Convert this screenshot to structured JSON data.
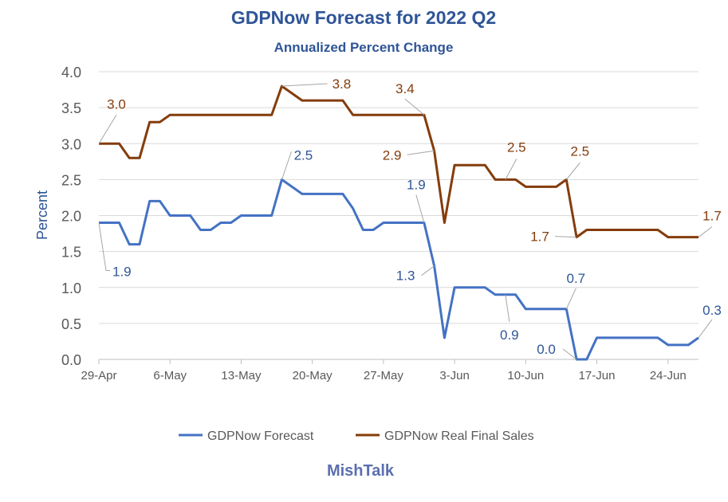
{
  "chart_data": {
    "type": "line",
    "title": "GDPNow Forecast for 2022 Q2",
    "subtitle": "Annualized Percent Change",
    "xlabel": "",
    "ylabel": "Percent",
    "ylim": [
      0,
      4.0
    ],
    "yticks": [
      "0.0",
      "0.5",
      "1.0",
      "1.5",
      "2.0",
      "2.5",
      "3.0",
      "3.5",
      "4.0"
    ],
    "xticks": [
      "29-Apr",
      "6-May",
      "13-May",
      "20-May",
      "27-May",
      "3-Jun",
      "10-Jun",
      "17-Jun",
      "24-Jun"
    ],
    "grid": true,
    "legend_position": "bottom",
    "x": [
      "29-Apr",
      "30-Apr",
      "1-May",
      "2-May",
      "3-May",
      "4-May",
      "5-May",
      "6-May",
      "7-May",
      "8-May",
      "9-May",
      "10-May",
      "11-May",
      "12-May",
      "13-May",
      "14-May",
      "15-May",
      "16-May",
      "17-May",
      "18-May",
      "19-May",
      "20-May",
      "21-May",
      "22-May",
      "23-May",
      "24-May",
      "25-May",
      "26-May",
      "27-May",
      "28-May",
      "29-May",
      "30-May",
      "31-May",
      "1-Jun",
      "2-Jun",
      "3-Jun",
      "4-Jun",
      "5-Jun",
      "6-Jun",
      "7-Jun",
      "8-Jun",
      "9-Jun",
      "10-Jun",
      "11-Jun",
      "12-Jun",
      "13-Jun",
      "14-Jun",
      "15-Jun",
      "16-Jun",
      "17-Jun",
      "18-Jun",
      "19-Jun",
      "20-Jun",
      "21-Jun",
      "22-Jun",
      "23-Jun",
      "24-Jun",
      "25-Jun",
      "26-Jun",
      "27-Jun"
    ],
    "series": [
      {
        "name": "GDPNow Forecast",
        "color": "#4472C4",
        "label_color": "#2F5597",
        "values": [
          1.9,
          1.9,
          1.9,
          1.6,
          1.6,
          2.2,
          2.2,
          2.0,
          2.0,
          2.0,
          1.8,
          1.8,
          1.9,
          1.9,
          2.0,
          2.0,
          2.0,
          2.0,
          2.5,
          2.4,
          2.3,
          2.3,
          2.3,
          2.3,
          2.3,
          2.1,
          1.8,
          1.8,
          1.9,
          1.9,
          1.9,
          1.9,
          1.9,
          1.3,
          0.3,
          1.0,
          1.0,
          1.0,
          1.0,
          0.9,
          0.9,
          0.9,
          0.7,
          0.7,
          0.7,
          0.7,
          0.7,
          0.0,
          0.0,
          0.3,
          0.3,
          0.3,
          0.3,
          0.3,
          0.3,
          0.3,
          0.2,
          0.2,
          0.2,
          0.3
        ],
        "labels": [
          {
            "x": "29-Apr",
            "text": "1.9"
          },
          {
            "x": "17-May",
            "text": "2.5"
          },
          {
            "x": "31-May",
            "text": "1.9"
          },
          {
            "x": "1-Jun",
            "text": "1.3"
          },
          {
            "x": "8-Jun",
            "text": "0.9"
          },
          {
            "x": "14-Jun",
            "text": "0.7"
          },
          {
            "x": "15-Jun",
            "text": "0.0"
          },
          {
            "x": "27-Jun",
            "text": "0.3"
          }
        ]
      },
      {
        "name": "GDPNow Real Final Sales",
        "color": "#843C0C",
        "label_color": "#843C0C",
        "values": [
          3.0,
          3.0,
          3.0,
          2.8,
          2.8,
          3.3,
          3.3,
          3.4,
          3.4,
          3.4,
          3.4,
          3.4,
          3.4,
          3.4,
          3.4,
          3.4,
          3.4,
          3.4,
          3.8,
          3.7,
          3.6,
          3.6,
          3.6,
          3.6,
          3.6,
          3.4,
          3.4,
          3.4,
          3.4,
          3.4,
          3.4,
          3.4,
          3.4,
          2.9,
          1.9,
          2.7,
          2.7,
          2.7,
          2.7,
          2.5,
          2.5,
          2.5,
          2.4,
          2.4,
          2.4,
          2.4,
          2.5,
          1.7,
          1.8,
          1.8,
          1.8,
          1.8,
          1.8,
          1.8,
          1.8,
          1.8,
          1.7,
          1.7,
          1.7,
          1.7
        ],
        "labels": [
          {
            "x": "29-Apr",
            "text": "3.0"
          },
          {
            "x": "17-May",
            "text": "3.8"
          },
          {
            "x": "31-May",
            "text": "3.4"
          },
          {
            "x": "1-Jun",
            "text": "2.9"
          },
          {
            "x": "8-Jun",
            "text": "2.5"
          },
          {
            "x": "14-Jun",
            "text": "2.5"
          },
          {
            "x": "15-Jun",
            "text": "1.7"
          },
          {
            "x": "27-Jun",
            "text": "1.7"
          }
        ]
      }
    ]
  },
  "branding": "MishTalk"
}
